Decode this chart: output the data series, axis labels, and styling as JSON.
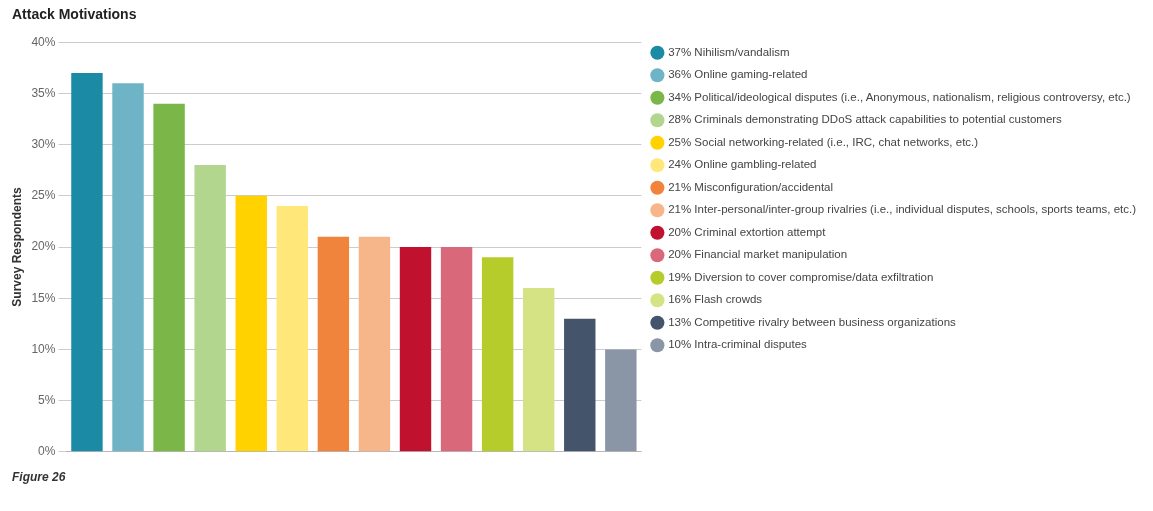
{
  "chart_data": {
    "type": "bar",
    "title": "Attack Motivations",
    "ylabel": "Survey Respondents",
    "categories": [
      null,
      null,
      null,
      null,
      null,
      null,
      null,
      null,
      null,
      null,
      null,
      null,
      null,
      null
    ],
    "stacked": true,
    "series": [
      {
        "name": "37% Nihilism/vandalism",
        "color": "#1a8aa5",
        "values": [
          37,
          null,
          null,
          null,
          null,
          null,
          null,
          null,
          null,
          null,
          null,
          null,
          null,
          null
        ]
      },
      {
        "name": "36% Online gaming-related",
        "color": "#6fb3c6",
        "values": [
          null,
          36,
          null,
          null,
          null,
          null,
          null,
          null,
          null,
          null,
          null,
          null,
          null,
          null
        ]
      },
      {
        "name": "34% Political/ideological disputes (i.e., Anonymous, nationalism, religious controversy, etc.)",
        "color": "#7ab648",
        "values": [
          null,
          null,
          34,
          null,
          null,
          null,
          null,
          null,
          null,
          null,
          null,
          null,
          null,
          null
        ]
      },
      {
        "name": "28% Criminals demonstrating DDoS attack capabilities to potential customers",
        "color": "#b3d68f",
        "values": [
          null,
          null,
          null,
          28,
          null,
          null,
          null,
          null,
          null,
          null,
          null,
          null,
          null,
          null
        ]
      },
      {
        "name": "25% Social networking-related (i.e., IRC, chat networks, etc.)",
        "color": "#ffd200",
        "values": [
          null,
          null,
          null,
          null,
          25,
          null,
          null,
          null,
          null,
          null,
          null,
          null,
          null,
          null
        ]
      },
      {
        "name": "24% Online gambling-related",
        "color": "#ffe77a",
        "values": [
          null,
          null,
          null,
          null,
          null,
          24,
          null,
          null,
          null,
          null,
          null,
          null,
          null,
          null
        ]
      },
      {
        "name": "21% Misconfiguration/accidental",
        "color": "#f0843c",
        "values": [
          null,
          null,
          null,
          null,
          null,
          null,
          21,
          null,
          null,
          null,
          null,
          null,
          null,
          null
        ]
      },
      {
        "name": "21% Inter-personal/inter-group rivalries (i.e., individual disputes, schools, sports teams, etc.)",
        "color": "#f6b68a",
        "values": [
          null,
          null,
          null,
          null,
          null,
          null,
          null,
          21,
          null,
          null,
          null,
          null,
          null,
          null
        ]
      },
      {
        "name": "20% Criminal extortion attempt",
        "color": "#c0122f",
        "values": [
          null,
          null,
          null,
          null,
          null,
          null,
          null,
          null,
          20,
          null,
          null,
          null,
          null,
          null
        ]
      },
      {
        "name": "20% Financial market manipulation",
        "color": "#d9687b",
        "values": [
          null,
          null,
          null,
          null,
          null,
          null,
          null,
          null,
          null,
          20,
          null,
          null,
          null,
          null
        ]
      },
      {
        "name": "19% Diversion to cover compromise/data exfiltration",
        "color": "#b5cc2a",
        "values": [
          null,
          null,
          null,
          null,
          null,
          null,
          null,
          null,
          null,
          null,
          19,
          null,
          null,
          null
        ]
      },
      {
        "name": "16% Flash crowds",
        "color": "#d6e384",
        "values": [
          null,
          null,
          null,
          null,
          null,
          null,
          null,
          null,
          null,
          null,
          null,
          16,
          null,
          null
        ]
      },
      {
        "name": "13% Competitive rivalry between business organizations",
        "color": "#44546a",
        "values": [
          null,
          null,
          null,
          null,
          null,
          null,
          null,
          null,
          null,
          null,
          null,
          null,
          13,
          null
        ]
      },
      {
        "name": "10% Intra-criminal disputes",
        "color": "#8a95a6",
        "values": [
          null,
          null,
          null,
          null,
          null,
          null,
          null,
          null,
          null,
          null,
          null,
          null,
          null,
          10
        ]
      }
    ],
    "ylim": [
      0,
      40
    ],
    "yticks": [
      {
        "value": 0,
        "label": "0%"
      },
      {
        "value": 5,
        "label": "5%"
      },
      {
        "value": 10,
        "label": "10%"
      },
      {
        "value": 15,
        "label": "15%"
      },
      {
        "value": 20,
        "label": "20%"
      },
      {
        "value": 25,
        "label": "25%"
      },
      {
        "value": 30,
        "label": "30%"
      },
      {
        "value": 35,
        "label": "35%"
      },
      {
        "value": 40,
        "label": "40%"
      }
    ],
    "grid": "y",
    "tick_labels": "y",
    "legend": "right",
    "annotations": [
      "Figure 26"
    ]
  }
}
